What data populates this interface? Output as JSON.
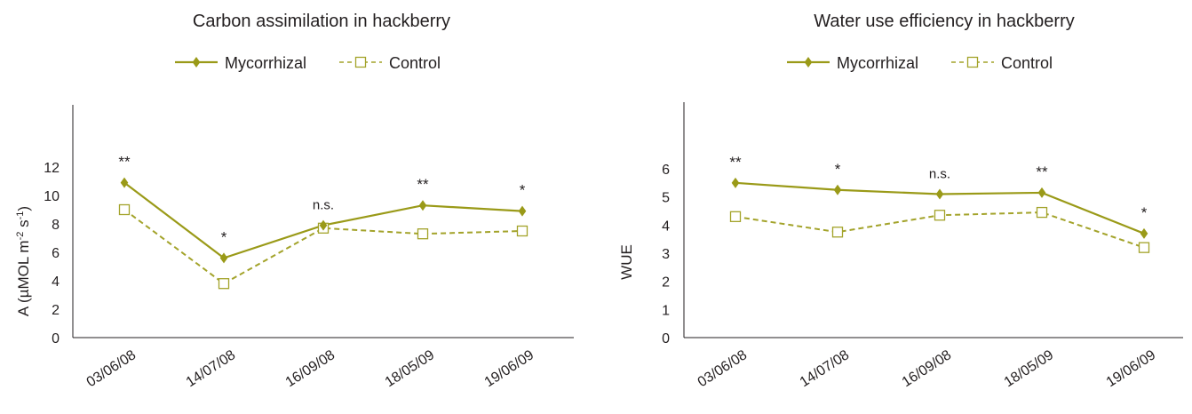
{
  "colors": {
    "mycorrhizal": "#9a9a18",
    "control": "#a3a32a",
    "axis": "#231f20"
  },
  "chart_data": [
    {
      "type": "line",
      "title": "Carbon assimilation in hackberry",
      "xlabel": "",
      "ylabel": "A (µMOL m-2 s-1)",
      "ylabel_parts": {
        "base": "A (µMOL m",
        "sup1": "-2",
        "mid": " s",
        "sup2": "-1",
        "end": ")"
      },
      "ylim": [
        0,
        12
      ],
      "yticks": [
        "0",
        "2",
        "4",
        "6",
        "8",
        "10",
        "12"
      ],
      "categories": [
        "03/06/08",
        "14/07/08",
        "16/09/08",
        "18/05/09",
        "19/06/09"
      ],
      "series": [
        {
          "name": "Mycorrhizal",
          "values": [
            10.9,
            5.6,
            7.9,
            9.3,
            8.9
          ],
          "marker": "diamond",
          "line": "solid"
        },
        {
          "name": "Control",
          "values": [
            9.0,
            3.8,
            7.7,
            7.3,
            7.5
          ],
          "marker": "square-open",
          "line": "dashed"
        }
      ],
      "annotations": [
        "**",
        "*",
        "n.s.",
        "**",
        "*"
      ],
      "legend": "top-center",
      "grid": false
    },
    {
      "type": "line",
      "title": "Water use efficiency in hackberry",
      "xlabel": "",
      "ylabel": "WUE",
      "ylim": [
        0,
        6
      ],
      "yticks": [
        "0",
        "1",
        "2",
        "3",
        "4",
        "5",
        "6"
      ],
      "categories": [
        "03/06/08",
        "14/07/08",
        "16/09/08",
        "18/05/09",
        "19/06/09"
      ],
      "series": [
        {
          "name": "Mycorrhizal",
          "values": [
            5.5,
            5.25,
            5.1,
            5.15,
            3.7
          ],
          "marker": "diamond",
          "line": "solid"
        },
        {
          "name": "Control",
          "values": [
            4.3,
            3.75,
            4.35,
            4.45,
            3.2
          ],
          "marker": "square-open",
          "line": "dashed"
        }
      ],
      "annotations": [
        "**",
        "*",
        "n.s.",
        "**",
        "*"
      ],
      "legend": "top-center",
      "grid": false
    }
  ]
}
